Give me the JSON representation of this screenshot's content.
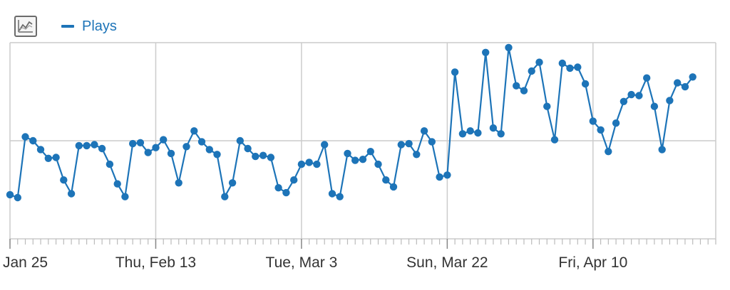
{
  "toolbar": {
    "chart_type_icon": "line-chart-icon"
  },
  "chart_data": {
    "type": "line",
    "legend": {
      "position": "top-left",
      "entries": [
        "Plays"
      ]
    },
    "grid": true,
    "xlim": [
      "2020-01-25",
      "2020-04-26"
    ],
    "ylim": [
      0,
      2
    ],
    "x_tick_labels": [
      {
        "date": "2020-01-25",
        "label": "Jan 25"
      },
      {
        "date": "2020-02-13",
        "label": "Thu, Feb 13"
      },
      {
        "date": "2020-03-03",
        "label": "Tue, Mar 3"
      },
      {
        "date": "2020-03-22",
        "label": "Sun, Mar 22"
      },
      {
        "date": "2020-04-10",
        "label": "Fri, Apr 10"
      }
    ],
    "series": [
      {
        "name": "Plays",
        "color": "#1d74b8",
        "start_date": "2020-01-25",
        "values": [
          0.45,
          0.42,
          1.04,
          1.0,
          0.91,
          0.82,
          0.83,
          0.6,
          0.46,
          0.95,
          0.95,
          0.96,
          0.92,
          0.76,
          0.56,
          0.43,
          0.97,
          0.98,
          0.88,
          0.93,
          1.01,
          0.87,
          0.57,
          0.94,
          1.1,
          0.99,
          0.91,
          0.86,
          0.43,
          0.57,
          1.0,
          0.92,
          0.84,
          0.85,
          0.83,
          0.52,
          0.47,
          0.6,
          0.76,
          0.78,
          0.76,
          0.96,
          0.46,
          0.43,
          0.87,
          0.8,
          0.81,
          0.89,
          0.76,
          0.6,
          0.53,
          0.96,
          0.97,
          0.86,
          1.1,
          0.99,
          0.63,
          0.65,
          1.7,
          1.07,
          1.1,
          1.08,
          1.9,
          1.13,
          1.07,
          1.95,
          1.56,
          1.51,
          1.71,
          1.8,
          1.35,
          1.01,
          1.79,
          1.74,
          1.75,
          1.58,
          1.2,
          1.11,
          0.89,
          1.18,
          1.4,
          1.47,
          1.46,
          1.64,
          1.35,
          0.91,
          1.41,
          1.59,
          1.55,
          1.65
        ]
      }
    ]
  }
}
